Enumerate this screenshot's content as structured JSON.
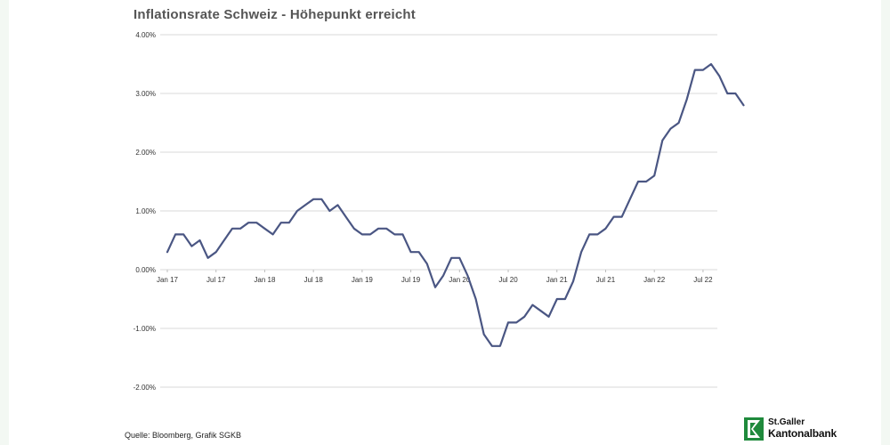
{
  "title": "Inflationsrate Schweiz - Höhepunkt erreicht",
  "source": "Quelle: Bloomberg, Grafik SGKB",
  "logo": {
    "line1": "St.Galler",
    "line2": "Kantonalbank"
  },
  "colors": {
    "line": "#4a5683",
    "grid": "#d9d9d9",
    "axis_text": "#333333",
    "logo_green": "#1f8a3c"
  },
  "chart_data": {
    "type": "line",
    "title": "Inflationsrate Schweiz - Höhepunkt erreicht",
    "xlabel": "",
    "ylabel": "",
    "ylim": [
      -2.0,
      4.0
    ],
    "y_ticks": [
      4,
      3,
      2,
      1,
      0,
      -1,
      -2
    ],
    "y_tick_labels": [
      "4.00%",
      "3.00%",
      "2.00%",
      "1.00%",
      "0.00%",
      "-1.00%",
      "-2.00%"
    ],
    "x_tick_labels": [
      "Jan 17",
      "Jul 17",
      "Jan 18",
      "Jul 18",
      "Jan 19",
      "Jul 19",
      "Jan 20",
      "Jul 20",
      "Jan 21",
      "Jul 21",
      "Jan 22",
      "Jul 22"
    ],
    "grid": "horizontal",
    "series": [
      {
        "x_start": "2017-01",
        "x_end": "2022-12",
        "frequency": "monthly",
        "values": [
          0.3,
          0.6,
          0.6,
          0.4,
          0.5,
          0.2,
          0.3,
          0.5,
          0.7,
          0.7,
          0.8,
          0.8,
          0.7,
          0.6,
          0.8,
          0.8,
          1.0,
          1.1,
          1.2,
          1.2,
          1.0,
          1.1,
          0.9,
          0.7,
          0.6,
          0.6,
          0.7,
          0.7,
          0.6,
          0.6,
          0.3,
          0.3,
          0.1,
          -0.3,
          -0.1,
          0.2,
          0.2,
          -0.1,
          -0.5,
          -1.1,
          -1.3,
          -1.3,
          -0.9,
          -0.9,
          -0.8,
          -0.6,
          -0.7,
          -0.8,
          -0.5,
          -0.5,
          -0.2,
          0.3,
          0.6,
          0.6,
          0.7,
          0.9,
          0.9,
          1.2,
          1.5,
          1.5,
          1.6,
          2.2,
          2.4,
          2.5,
          2.9,
          3.4,
          3.4,
          3.5,
          3.3,
          3.0,
          3.0,
          2.8
        ]
      }
    ]
  }
}
